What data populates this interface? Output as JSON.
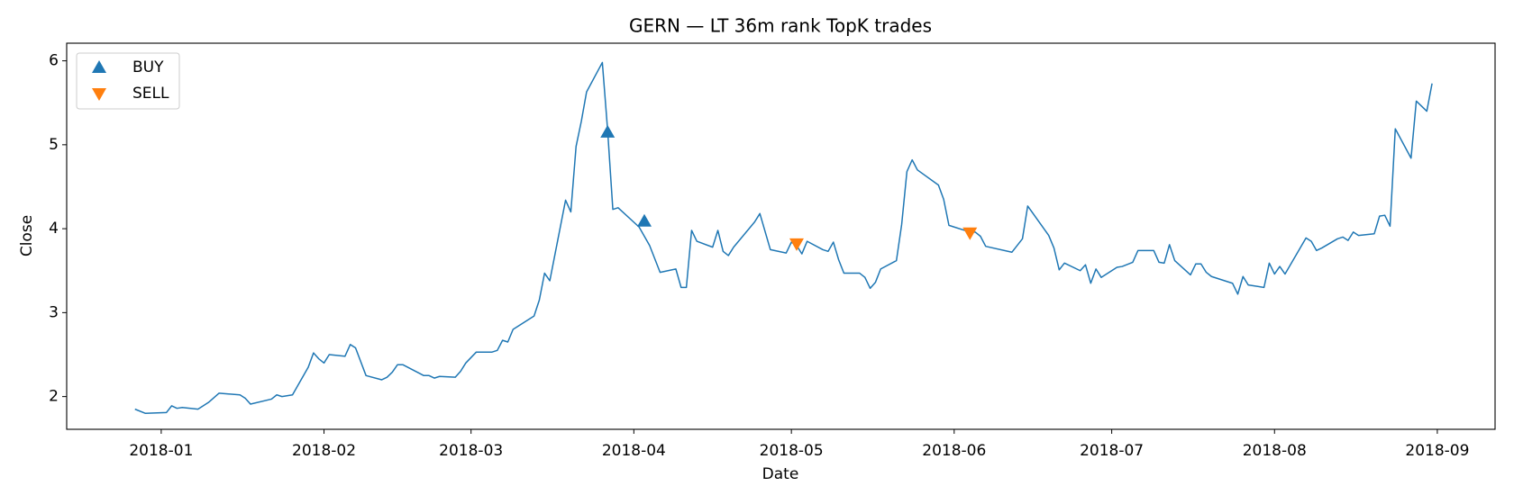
{
  "chart_data": {
    "type": "line",
    "title": "GERN — LT 36m rank TopK trades",
    "xlabel": "Date",
    "ylabel": "Close",
    "color": "#1f77b4",
    "x": [
      "2017-12-27",
      "2017-12-29",
      "2018-01-02",
      "2018-01-03",
      "2018-01-04",
      "2018-01-05",
      "2018-01-08",
      "2018-01-09",
      "2018-01-10",
      "2018-01-12",
      "2018-01-16",
      "2018-01-17",
      "2018-01-18",
      "2018-01-22",
      "2018-01-23",
      "2018-01-24",
      "2018-01-26",
      "2018-01-29",
      "2018-01-30",
      "2018-01-31",
      "2018-02-01",
      "2018-02-02",
      "2018-02-05",
      "2018-02-06",
      "2018-02-07",
      "2018-02-09",
      "2018-02-12",
      "2018-02-13",
      "2018-02-14",
      "2018-02-15",
      "2018-02-16",
      "2018-02-20",
      "2018-02-21",
      "2018-02-22",
      "2018-02-23",
      "2018-02-26",
      "2018-02-27",
      "2018-02-28",
      "2018-03-02",
      "2018-03-05",
      "2018-03-06",
      "2018-03-07",
      "2018-03-08",
      "2018-03-09",
      "2018-03-13",
      "2018-03-14",
      "2018-03-15",
      "2018-03-16",
      "2018-03-19",
      "2018-03-20",
      "2018-03-21",
      "2018-03-22",
      "2018-03-23",
      "2018-03-26",
      "2018-03-27",
      "2018-03-28",
      "2018-03-29",
      "2018-04-02",
      "2018-04-04",
      "2018-04-06",
      "2018-04-09",
      "2018-04-10",
      "2018-04-11",
      "2018-04-12",
      "2018-04-13",
      "2018-04-16",
      "2018-04-17",
      "2018-04-18",
      "2018-04-19",
      "2018-04-20",
      "2018-04-24",
      "2018-04-25",
      "2018-04-27",
      "2018-04-30",
      "2018-05-01",
      "2018-05-02",
      "2018-05-03",
      "2018-05-04",
      "2018-05-07",
      "2018-05-08",
      "2018-05-09",
      "2018-05-10",
      "2018-05-11",
      "2018-05-14",
      "2018-05-15",
      "2018-05-16",
      "2018-05-17",
      "2018-05-18",
      "2018-05-21",
      "2018-05-22",
      "2018-05-23",
      "2018-05-24",
      "2018-05-25",
      "2018-05-29",
      "2018-05-30",
      "2018-05-31",
      "2018-06-04",
      "2018-06-05",
      "2018-06-06",
      "2018-06-07",
      "2018-06-12",
      "2018-06-14",
      "2018-06-15",
      "2018-06-19",
      "2018-06-20",
      "2018-06-21",
      "2018-06-22",
      "2018-06-25",
      "2018-06-26",
      "2018-06-27",
      "2018-06-28",
      "2018-06-29",
      "2018-07-02",
      "2018-07-03",
      "2018-07-05",
      "2018-07-06",
      "2018-07-09",
      "2018-07-10",
      "2018-07-11",
      "2018-07-12",
      "2018-07-13",
      "2018-07-16",
      "2018-07-17",
      "2018-07-18",
      "2018-07-19",
      "2018-07-20",
      "2018-07-24",
      "2018-07-25",
      "2018-07-26",
      "2018-07-27",
      "2018-07-30",
      "2018-07-31",
      "2018-08-01",
      "2018-08-02",
      "2018-08-03",
      "2018-08-07",
      "2018-08-08",
      "2018-08-09",
      "2018-08-10",
      "2018-08-13",
      "2018-08-14",
      "2018-08-15",
      "2018-08-16",
      "2018-08-17",
      "2018-08-20",
      "2018-08-21",
      "2018-08-22",
      "2018-08-23",
      "2018-08-24",
      "2018-08-27",
      "2018-08-28",
      "2018-08-30",
      "2018-08-31"
    ],
    "values": [
      1.85,
      1.8,
      1.81,
      1.89,
      1.86,
      1.87,
      1.85,
      1.89,
      1.93,
      2.04,
      2.02,
      1.98,
      1.91,
      1.97,
      2.02,
      2.0,
      2.02,
      2.35,
      2.52,
      2.45,
      2.4,
      2.5,
      2.48,
      2.62,
      2.58,
      2.25,
      2.2,
      2.23,
      2.29,
      2.38,
      2.38,
      2.25,
      2.25,
      2.22,
      2.24,
      2.23,
      2.3,
      2.4,
      2.53,
      2.53,
      2.55,
      2.67,
      2.65,
      2.8,
      2.96,
      3.15,
      3.47,
      3.38,
      4.34,
      4.2,
      4.98,
      5.28,
      5.63,
      5.98,
      5.18,
      4.23,
      4.25,
      4.02,
      3.8,
      3.48,
      3.52,
      3.3,
      3.3,
      3.98,
      3.85,
      3.78,
      3.98,
      3.73,
      3.68,
      3.78,
      4.08,
      4.18,
      3.75,
      3.71,
      3.84,
      3.8,
      3.7,
      3.85,
      3.75,
      3.73,
      3.84,
      3.63,
      3.47,
      3.47,
      3.42,
      3.29,
      3.36,
      3.52,
      3.62,
      4.05,
      4.68,
      4.82,
      4.7,
      4.52,
      4.35,
      4.04,
      3.96,
      3.96,
      3.91,
      3.79,
      3.72,
      3.88,
      4.27,
      3.92,
      3.77,
      3.51,
      3.59,
      3.5,
      3.57,
      3.35,
      3.52,
      3.42,
      3.54,
      3.55,
      3.6,
      3.74,
      3.74,
      3.6,
      3.59,
      3.81,
      3.62,
      3.45,
      3.58,
      3.58,
      3.48,
      3.43,
      3.35,
      3.22,
      3.43,
      3.33,
      3.3,
      3.59,
      3.46,
      3.55,
      3.46,
      3.89,
      3.85,
      3.74,
      3.77,
      3.88,
      3.9,
      3.86,
      3.96,
      3.92,
      3.94,
      4.15,
      4.16,
      4.03,
      5.19,
      4.84,
      5.52,
      5.4,
      5.73
    ],
    "series": [
      {
        "name": "BUY",
        "marker": "triangle-up",
        "color": "#1f77b4",
        "x": [
          "2018-03-27",
          "2018-04-03"
        ],
        "values": [
          5.15,
          4.09
        ]
      },
      {
        "name": "SELL",
        "marker": "triangle-down",
        "color": "#ff7f0e",
        "x": [
          "2018-05-02",
          "2018-06-04"
        ],
        "values": [
          3.82,
          3.95
        ]
      }
    ],
    "legend": "upper left",
    "xlim": [
      "2017-12-14",
      "2018-09-12"
    ],
    "xticks": [
      {
        "value": "2018-01-01",
        "label": "2018-01"
      },
      {
        "value": "2018-02-01",
        "label": "2018-02"
      },
      {
        "value": "2018-03-01",
        "label": "2018-03"
      },
      {
        "value": "2018-04-01",
        "label": "2018-04"
      },
      {
        "value": "2018-05-01",
        "label": "2018-05"
      },
      {
        "value": "2018-06-01",
        "label": "2018-06"
      },
      {
        "value": "2018-07-01",
        "label": "2018-07"
      },
      {
        "value": "2018-08-01",
        "label": "2018-08"
      },
      {
        "value": "2018-09-01",
        "label": "2018-09"
      }
    ],
    "ylim": [
      1.61,
      6.21
    ],
    "yticks": [
      2,
      3,
      4,
      5,
      6
    ],
    "grid": false
  }
}
